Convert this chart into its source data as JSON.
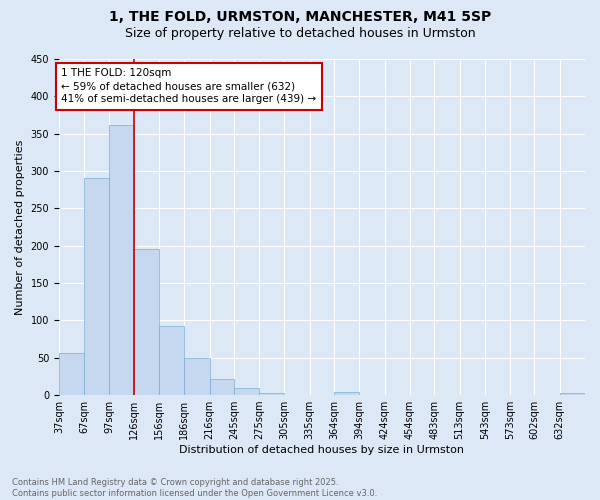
{
  "title": "1, THE FOLD, URMSTON, MANCHESTER, M41 5SP",
  "subtitle": "Size of property relative to detached houses in Urmston",
  "xlabel": "Distribution of detached houses by size in Urmston",
  "ylabel": "Number of detached properties",
  "bar_color": "#c5d8ef",
  "bar_edge_color": "#7aafd4",
  "background_color": "#dce8f5",
  "grid_color": "#ffffff",
  "red_line_x": 126,
  "annotation_text": "1 THE FOLD: 120sqm\n← 59% of detached houses are smaller (632)\n41% of semi-detached houses are larger (439) →",
  "annotation_box_color": "#ffffff",
  "annotation_edge_color": "#cc0000",
  "categories": [
    "37sqm",
    "67sqm",
    "97sqm",
    "126sqm",
    "156sqm",
    "186sqm",
    "216sqm",
    "245sqm",
    "275sqm",
    "305sqm",
    "335sqm",
    "364sqm",
    "394sqm",
    "424sqm",
    "454sqm",
    "483sqm",
    "513sqm",
    "543sqm",
    "573sqm",
    "602sqm",
    "632sqm"
  ],
  "values": [
    57,
    291,
    362,
    196,
    93,
    49,
    21,
    9,
    3,
    0,
    0,
    4,
    0,
    0,
    0,
    0,
    0,
    0,
    0,
    0,
    3
  ],
  "bin_edges": [
    37,
    67,
    97,
    126,
    156,
    186,
    216,
    245,
    275,
    305,
    335,
    364,
    394,
    424,
    454,
    483,
    513,
    543,
    573,
    602,
    632,
    662
  ],
  "ylim": [
    0,
    450
  ],
  "yticks": [
    0,
    50,
    100,
    150,
    200,
    250,
    300,
    350,
    400,
    450
  ],
  "footer_text": "Contains HM Land Registry data © Crown copyright and database right 2025.\nContains public sector information licensed under the Open Government Licence v3.0.",
  "title_fontsize": 10,
  "subtitle_fontsize": 9,
  "axis_label_fontsize": 8,
  "tick_fontsize": 7,
  "footer_fontsize": 6,
  "annot_fontsize": 7.5
}
